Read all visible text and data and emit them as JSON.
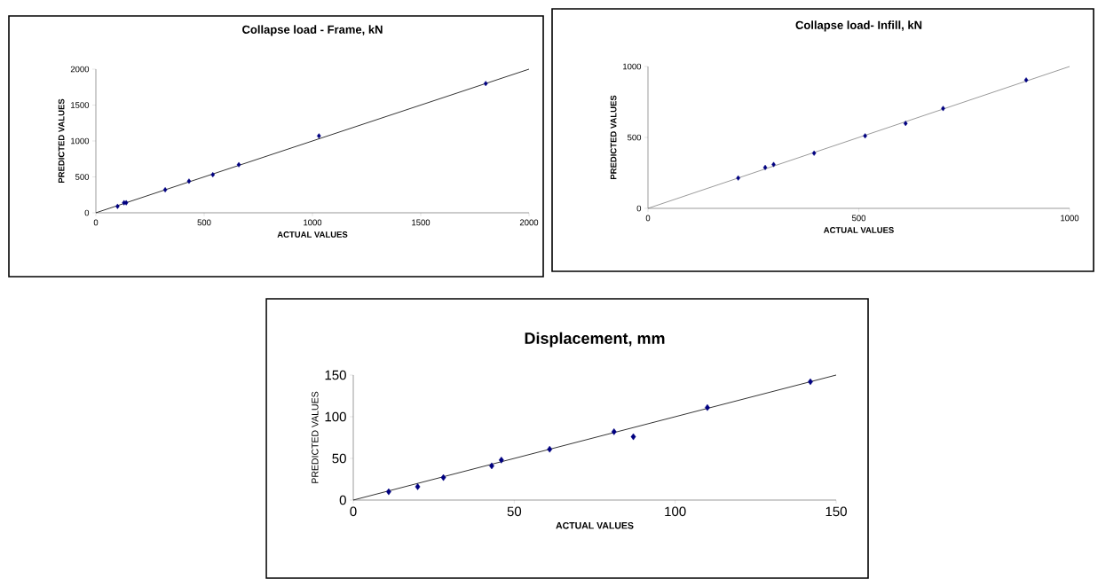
{
  "chart_data": [
    {
      "type": "scatter",
      "title": "Collapse load - Frame, kN",
      "xlabel": "ACTUAL VALUES",
      "ylabel": "PREDICTED VALUES",
      "xlim": [
        0,
        2000
      ],
      "ylim": [
        0,
        2000
      ],
      "xticks": [
        0,
        500,
        1000,
        1500,
        2000
      ],
      "yticks": [
        0,
        500,
        1000,
        1500,
        2000
      ],
      "series": [
        {
          "marker": "diamond",
          "color": "#000080",
          "x": [
            100,
            130,
            140,
            320,
            430,
            540,
            660,
            1030,
            1800
          ],
          "values": [
            90,
            140,
            140,
            320,
            440,
            530,
            670,
            1070,
            1800
          ]
        },
        {
          "type": "line",
          "marker": "none",
          "color": "#000000",
          "x": [
            0,
            2000
          ],
          "values": [
            0,
            2000
          ]
        }
      ]
    },
    {
      "type": "scatter",
      "title": "Collapse load- Infill, kN",
      "xlabel": "ACTUAL VALUES",
      "ylabel": "PREDICTED VALUES",
      "xlim": [
        0,
        1000
      ],
      "ylim": [
        0,
        1000
      ],
      "xticks": [
        0,
        500,
        1000
      ],
      "yticks": [
        0,
        500,
        1000
      ],
      "series": [
        {
          "marker": "diamond",
          "color": "#000080",
          "x": [
            214,
            278,
            298,
            394,
            515,
            611,
            700,
            897
          ],
          "values": [
            214,
            288,
            309,
            389,
            511,
            599,
            704,
            905
          ]
        },
        {
          "type": "line",
          "marker": "none",
          "color": "#808080",
          "x": [
            0,
            1000
          ],
          "values": [
            0,
            1000
          ]
        }
      ]
    },
    {
      "type": "scatter",
      "title": "Displacement, mm",
      "xlabel": "ACTUAL VALUES",
      "ylabel": "PREDICTED VALUES",
      "xlim": [
        0,
        150
      ],
      "ylim": [
        0,
        150
      ],
      "xticks": [
        0,
        50,
        100,
        150
      ],
      "yticks": [
        0,
        50,
        100,
        150
      ],
      "series": [
        {
          "marker": "diamond",
          "color": "#000080",
          "x": [
            11,
            20,
            28,
            43,
            46,
            61,
            81,
            87,
            110,
            142
          ],
          "values": [
            10,
            16,
            27,
            41,
            48,
            61,
            82,
            76,
            111,
            142
          ]
        },
        {
          "type": "line",
          "marker": "none",
          "color": "#000000",
          "x": [
            0,
            150
          ],
          "values": [
            0,
            150
          ]
        }
      ]
    }
  ]
}
